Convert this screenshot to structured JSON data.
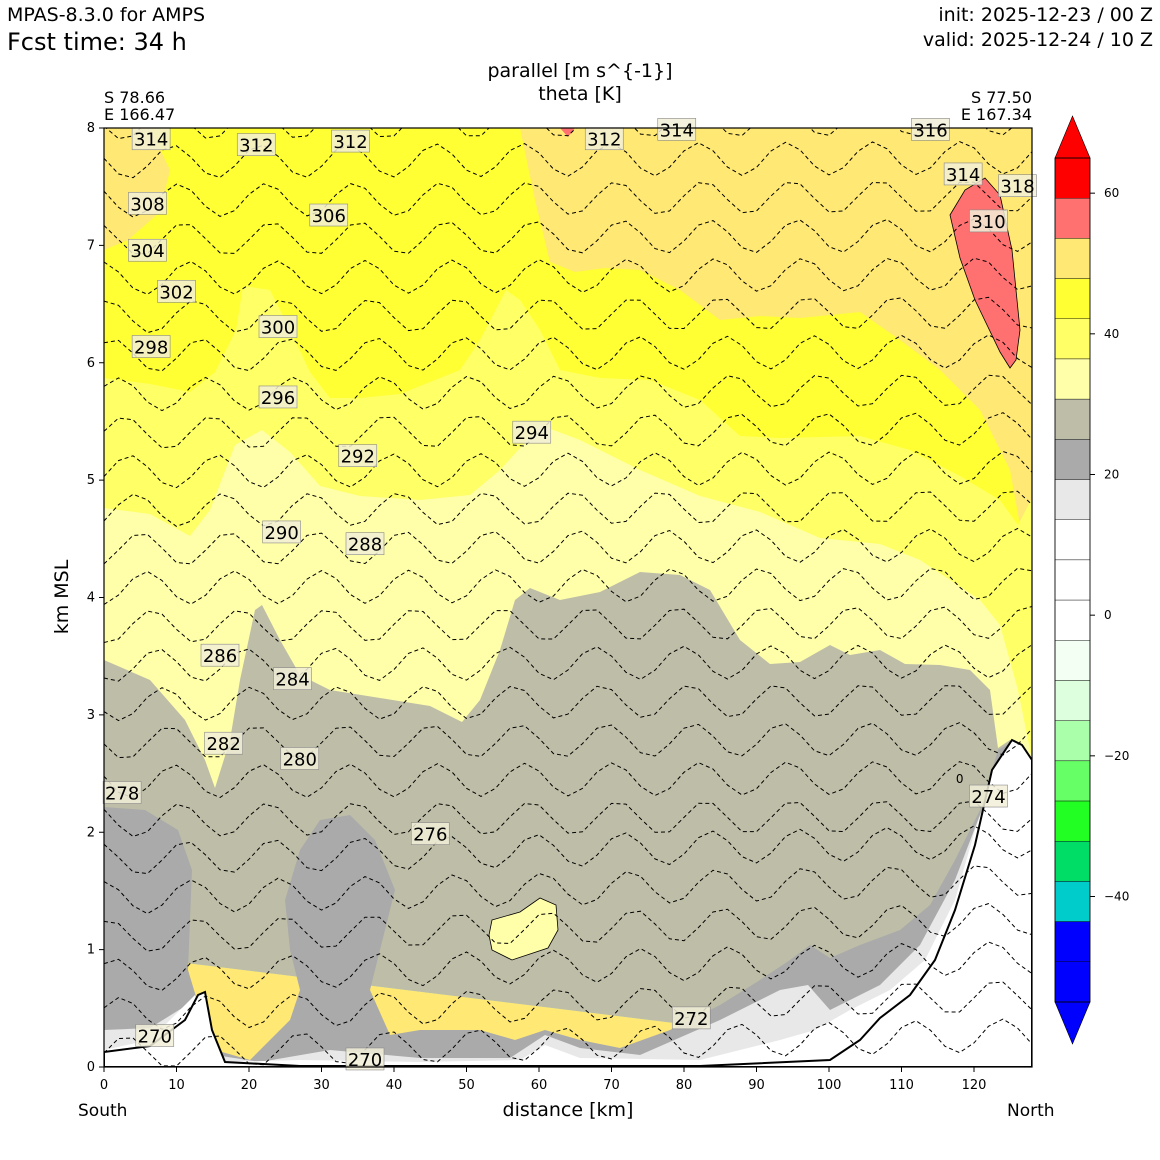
{
  "header": {
    "model": "MPAS-8.3.0 for AMPS",
    "forecast_time": "Fcst time:   34 h",
    "init": "init: 2025-12-23 / 00 Z",
    "valid": "valid: 2025-12-24 / 10 Z"
  },
  "chart_data": {
    "type": "cross-section",
    "title": "parallel [m s^{-1}]",
    "subtitle": "theta [K]",
    "xlabel": "distance [km]",
    "ylabel": "km MSL",
    "xlim": [
      0,
      128
    ],
    "ylim": [
      0,
      8
    ],
    "xticks": [
      0,
      10,
      20,
      30,
      40,
      50,
      60,
      70,
      80,
      90,
      100,
      110,
      120
    ],
    "yticks": [
      0,
      1,
      2,
      3,
      4,
      5,
      6,
      7,
      8
    ],
    "start_point": {
      "lat": "S 78.66",
      "lon": "E 166.47",
      "label": "South"
    },
    "end_point": {
      "lat": "S 77.50",
      "lon": "E 167.34",
      "label": "North"
    },
    "filled_field": {
      "name": "parallel wind",
      "units": "m s^{-1}",
      "levels": [
        -55,
        -50,
        -45,
        -40,
        -35,
        -30,
        -25,
        -20,
        -15,
        -10,
        -5,
        0,
        5,
        10,
        15,
        20,
        25,
        30,
        35,
        40,
        45,
        50,
        55,
        60
      ],
      "colors": [
        "#0000ff",
        "#0000ff",
        "#00cccc",
        "#00dd66",
        "#22ff22",
        "#66ff66",
        "#aaffaa",
        "#ddffdd",
        "#f2fff2",
        "#ffffff",
        "#ffffff",
        "#ffffff",
        "#e8e8e8",
        "#aaaaaa",
        "#bebea8",
        "#ffffaa",
        "#ffff66",
        "#ffff33",
        "#ffe873",
        "#ff7070",
        "#ff0000"
      ],
      "regions_approx": [
        {
          "range": "15-20",
          "location": "near surface, 0-1 km; 0-12 km range up to 2.2 km; 26-40 km up to 2 km"
        },
        {
          "range": "20-25",
          "location": "main body 0-4.2 km across section"
        },
        {
          "range": "25-30",
          "location": "band ~3-5.5 km"
        },
        {
          "range": "30-35",
          "location": "band ~4.5-6.5 km"
        },
        {
          "range": "35-40",
          "location": "~6-7.5 km"
        },
        {
          "range": "40-45",
          "location": "upper levels ~6.5-8 km, north half"
        },
        {
          "range": "45-50",
          "location": "core near 118-126 km, 5.9-7.7 km"
        }
      ]
    },
    "contours": {
      "name": "theta",
      "units": "K",
      "levels": [
        270,
        272,
        274,
        276,
        278,
        280,
        282,
        284,
        286,
        288,
        290,
        292,
        294,
        296,
        298,
        300,
        302,
        304,
        306,
        308,
        310,
        312,
        314,
        316,
        318
      ],
      "labels": [
        {
          "text": "270",
          "x": 7,
          "y": 0.26
        },
        {
          "text": "270",
          "x": 36,
          "y": 0.06
        },
        {
          "text": "272",
          "x": 81,
          "y": 0.41
        },
        {
          "text": "274",
          "x": 122,
          "y": 2.3
        },
        {
          "text": "276",
          "x": 45,
          "y": 1.98
        },
        {
          "text": "278",
          "x": 2.5,
          "y": 2.33
        },
        {
          "text": "280",
          "x": 27,
          "y": 2.62
        },
        {
          "text": "282",
          "x": 16.5,
          "y": 2.75
        },
        {
          "text": "284",
          "x": 26,
          "y": 3.3
        },
        {
          "text": "286",
          "x": 16,
          "y": 3.5
        },
        {
          "text": "288",
          "x": 36,
          "y": 4.45
        },
        {
          "text": "290",
          "x": 24.5,
          "y": 4.55
        },
        {
          "text": "292",
          "x": 35,
          "y": 5.2
        },
        {
          "text": "294",
          "x": 59,
          "y": 5.4
        },
        {
          "text": "296",
          "x": 24,
          "y": 5.7
        },
        {
          "text": "298",
          "x": 6.5,
          "y": 6.13
        },
        {
          "text": "300",
          "x": 24,
          "y": 6.3
        },
        {
          "text": "302",
          "x": 10,
          "y": 6.6
        },
        {
          "text": "304",
          "x": 6,
          "y": 6.95
        },
        {
          "text": "306",
          "x": 31,
          "y": 7.25
        },
        {
          "text": "308",
          "x": 6,
          "y": 7.35
        },
        {
          "text": "310",
          "x": 122,
          "y": 7.2
        },
        {
          "text": "312",
          "x": 21,
          "y": 7.85
        },
        {
          "text": "312",
          "x": 34,
          "y": 7.88
        },
        {
          "text": "312",
          "x": 69,
          "y": 7.9
        },
        {
          "text": "314",
          "x": 6.5,
          "y": 7.9
        },
        {
          "text": "314",
          "x": 79,
          "y": 7.98
        },
        {
          "text": "314",
          "x": 118.5,
          "y": 7.6
        },
        {
          "text": "316",
          "x": 114,
          "y": 7.98
        },
        {
          "text": "318",
          "x": 126,
          "y": 7.5
        }
      ]
    },
    "colorbar": {
      "ticks": [
        60,
        40,
        20,
        0,
        -20,
        -40
      ],
      "tick_labels": [
        "60",
        "40",
        "20",
        "0",
        "−20",
        "−40"
      ]
    },
    "terrain_note": "0"
  }
}
